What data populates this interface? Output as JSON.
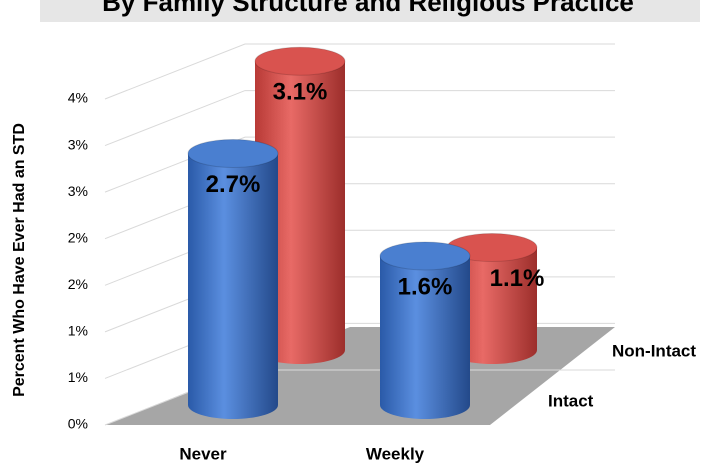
{
  "chart_data": {
    "type": "bar3d",
    "title": "By Family Structure and Religious Practice",
    "y_label": "Percent Who Have Ever Had an STD",
    "categories": [
      "Never",
      "Weekly"
    ],
    "series": [
      {
        "name": "Intact",
        "color": "#4a7fd0",
        "values": [
          2.7,
          1.6
        ],
        "value_labels": [
          "2.7%",
          "1.6%"
        ]
      },
      {
        "name": "Non-Intact",
        "color": "#d9534f",
        "values": [
          3.1,
          1.1
        ],
        "value_labels": [
          "3.1%",
          "1.1%"
        ]
      }
    ],
    "ylim": [
      0,
      3.5
    ],
    "yticks": [
      {
        "value": 0,
        "label": "0%"
      },
      {
        "value": 0.5,
        "label": "1%"
      },
      {
        "value": 1,
        "label": "1%"
      },
      {
        "value": 1.5,
        "label": "2%"
      },
      {
        "value": 2,
        "label": "2%"
      },
      {
        "value": 2.5,
        "label": "3%"
      },
      {
        "value": 3,
        "label": "3%"
      },
      {
        "value": 3.5,
        "label": "4%"
      }
    ],
    "grid": true
  }
}
